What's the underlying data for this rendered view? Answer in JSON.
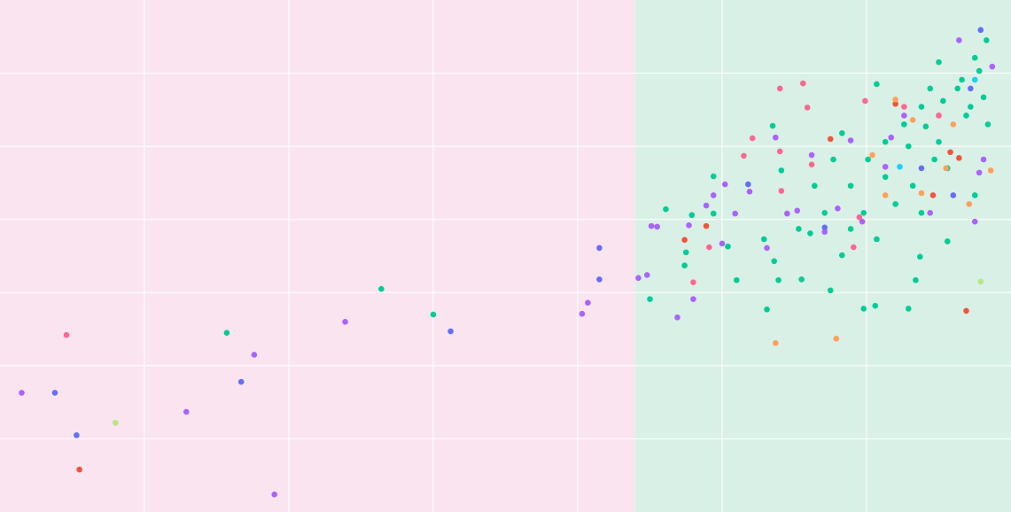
{
  "chart_data": {
    "type": "scatter",
    "xlim": [
      0,
      7
    ],
    "ylim": [
      0,
      7
    ],
    "xticks": [
      1,
      2,
      3,
      4,
      5,
      6
    ],
    "yticks": [
      1,
      2,
      3,
      4,
      5,
      6
    ],
    "grid": true,
    "grid_color": "#ffffff",
    "regions": [
      {
        "x0": 0,
        "x1": 4.4,
        "color": "#f9e4f0"
      },
      {
        "x0": 4.4,
        "x1": 7,
        "color": "#d9f0e6"
      }
    ],
    "series": [
      {
        "color": "#00cc96",
        "x": [
          1.57,
          2.64,
          3.0,
          4.5,
          4.61,
          4.79,
          4.75,
          4.74,
          4.94,
          4.94,
          5.04,
          5.1,
          5.29,
          5.31,
          5.36,
          5.39,
          5.41,
          5.35,
          5.53,
          5.55,
          5.61,
          5.75,
          5.77,
          5.83,
          5.89,
          5.98,
          6.06,
          6.07,
          6.29,
          6.34,
          6.37,
          6.56,
          6.07,
          6.5,
          6.83,
          6.75,
          6.66,
          6.44,
          6.38,
          6.26,
          6.13,
          6.01,
          6.5,
          6.69,
          6.81,
          6.84,
          6.56,
          6.32,
          6.2,
          5.89,
          5.71,
          5.83,
          6.38,
          6.75,
          6.63,
          6.78,
          6.72,
          6.41,
          6.13,
          5.98,
          5.64,
          6.53,
          6.29,
          6.47
        ],
        "y": [
          2.45,
          3.05,
          2.7,
          2.91,
          4.14,
          4.06,
          3.55,
          3.37,
          4.59,
          4.08,
          3.63,
          3.17,
          3.73,
          2.77,
          3.43,
          3.17,
          4.67,
          5.28,
          3.87,
          3.18,
          3.81,
          3.03,
          4.82,
          3.51,
          3.87,
          2.78,
          2.82,
          3.73,
          2.78,
          3.17,
          3.49,
          3.7,
          5.85,
          6.15,
          6.45,
          6.21,
          5.91,
          5.79,
          5.54,
          5.3,
          5.06,
          4.82,
          5.06,
          5.42,
          5.67,
          5.3,
          4.7,
          4.46,
          4.21,
          4.46,
          4.09,
          5.18,
          4.09,
          4.33,
          5.79,
          6.03,
          5.54,
          5.27,
          4.58,
          4.09,
          4.46,
          5.62,
          5.0,
          4.82
        ]
      },
      {
        "color": "#ab63fa",
        "x": [
          0.15,
          1.29,
          1.76,
          1.9,
          2.39,
          4.07,
          4.03,
          4.42,
          4.48,
          4.51,
          4.55,
          4.69,
          4.8,
          4.77,
          4.89,
          4.94,
          5.02,
          5.09,
          5.0,
          5.19,
          5.31,
          5.37,
          5.45,
          5.52,
          5.62,
          5.71,
          5.8,
          5.89,
          5.97,
          6.13,
          6.26,
          6.44,
          6.64,
          6.75,
          6.78,
          6.81,
          6.87,
          6.5,
          6.17
        ],
        "y": [
          1.63,
          1.37,
          2.15,
          0.24,
          2.6,
          2.86,
          2.71,
          3.2,
          3.24,
          3.91,
          3.9,
          2.66,
          2.91,
          3.92,
          4.19,
          4.33,
          4.48,
          4.08,
          3.67,
          4.38,
          3.61,
          5.12,
          4.08,
          4.12,
          4.88,
          3.83,
          4.15,
          5.08,
          3.97,
          4.72,
          5.42,
          4.09,
          6.45,
          3.97,
          4.64,
          4.82,
          6.09,
          5.42,
          5.12
        ]
      },
      {
        "color": "#636efa",
        "x": [
          0.38,
          0.53,
          1.67,
          3.12,
          4.15,
          4.15,
          5.18,
          6.79,
          5.71,
          6.6,
          6.38,
          6.72
        ],
        "y": [
          1.63,
          1.05,
          1.78,
          2.47,
          3.61,
          3.18,
          4.48,
          6.59,
          3.89,
          4.33,
          4.7,
          5.79
        ]
      },
      {
        "color": "#ff6692",
        "x": [
          0.46,
          5.4,
          5.56,
          5.59,
          5.21,
          5.15,
          5.4,
          5.41,
          5.62,
          5.95,
          5.91,
          5.99,
          4.91,
          4.8,
          6.26,
          6.5
        ],
        "y": [
          2.42,
          5.79,
          5.86,
          5.53,
          5.11,
          4.87,
          4.93,
          4.39,
          4.75,
          4.03,
          3.62,
          5.62,
          3.62,
          3.14,
          5.54,
          5.42
        ]
      },
      {
        "color": "#ef553b",
        "x": [
          0.55,
          4.74,
          4.89,
          5.75,
          6.69,
          6.58,
          6.64,
          6.46,
          6.2
        ],
        "y": [
          0.58,
          3.72,
          3.91,
          5.1,
          2.75,
          4.92,
          4.84,
          4.33,
          5.58
        ]
      },
      {
        "color": "#ffa15a",
        "x": [
          5.37,
          5.79,
          6.13,
          6.71,
          6.55,
          6.38,
          6.04,
          6.32,
          6.6,
          6.86,
          6.2
        ],
        "y": [
          2.31,
          2.37,
          4.33,
          4.21,
          4.7,
          4.36,
          4.88,
          5.36,
          5.3,
          4.67,
          5.64
        ]
      },
      {
        "color": "#19d3f3",
        "x": [
          6.23,
          6.75
        ],
        "y": [
          4.72,
          5.91
        ]
      },
      {
        "color": "#b6e880",
        "x": [
          0.8,
          6.79
        ],
        "y": [
          1.22,
          3.15
        ]
      }
    ]
  }
}
